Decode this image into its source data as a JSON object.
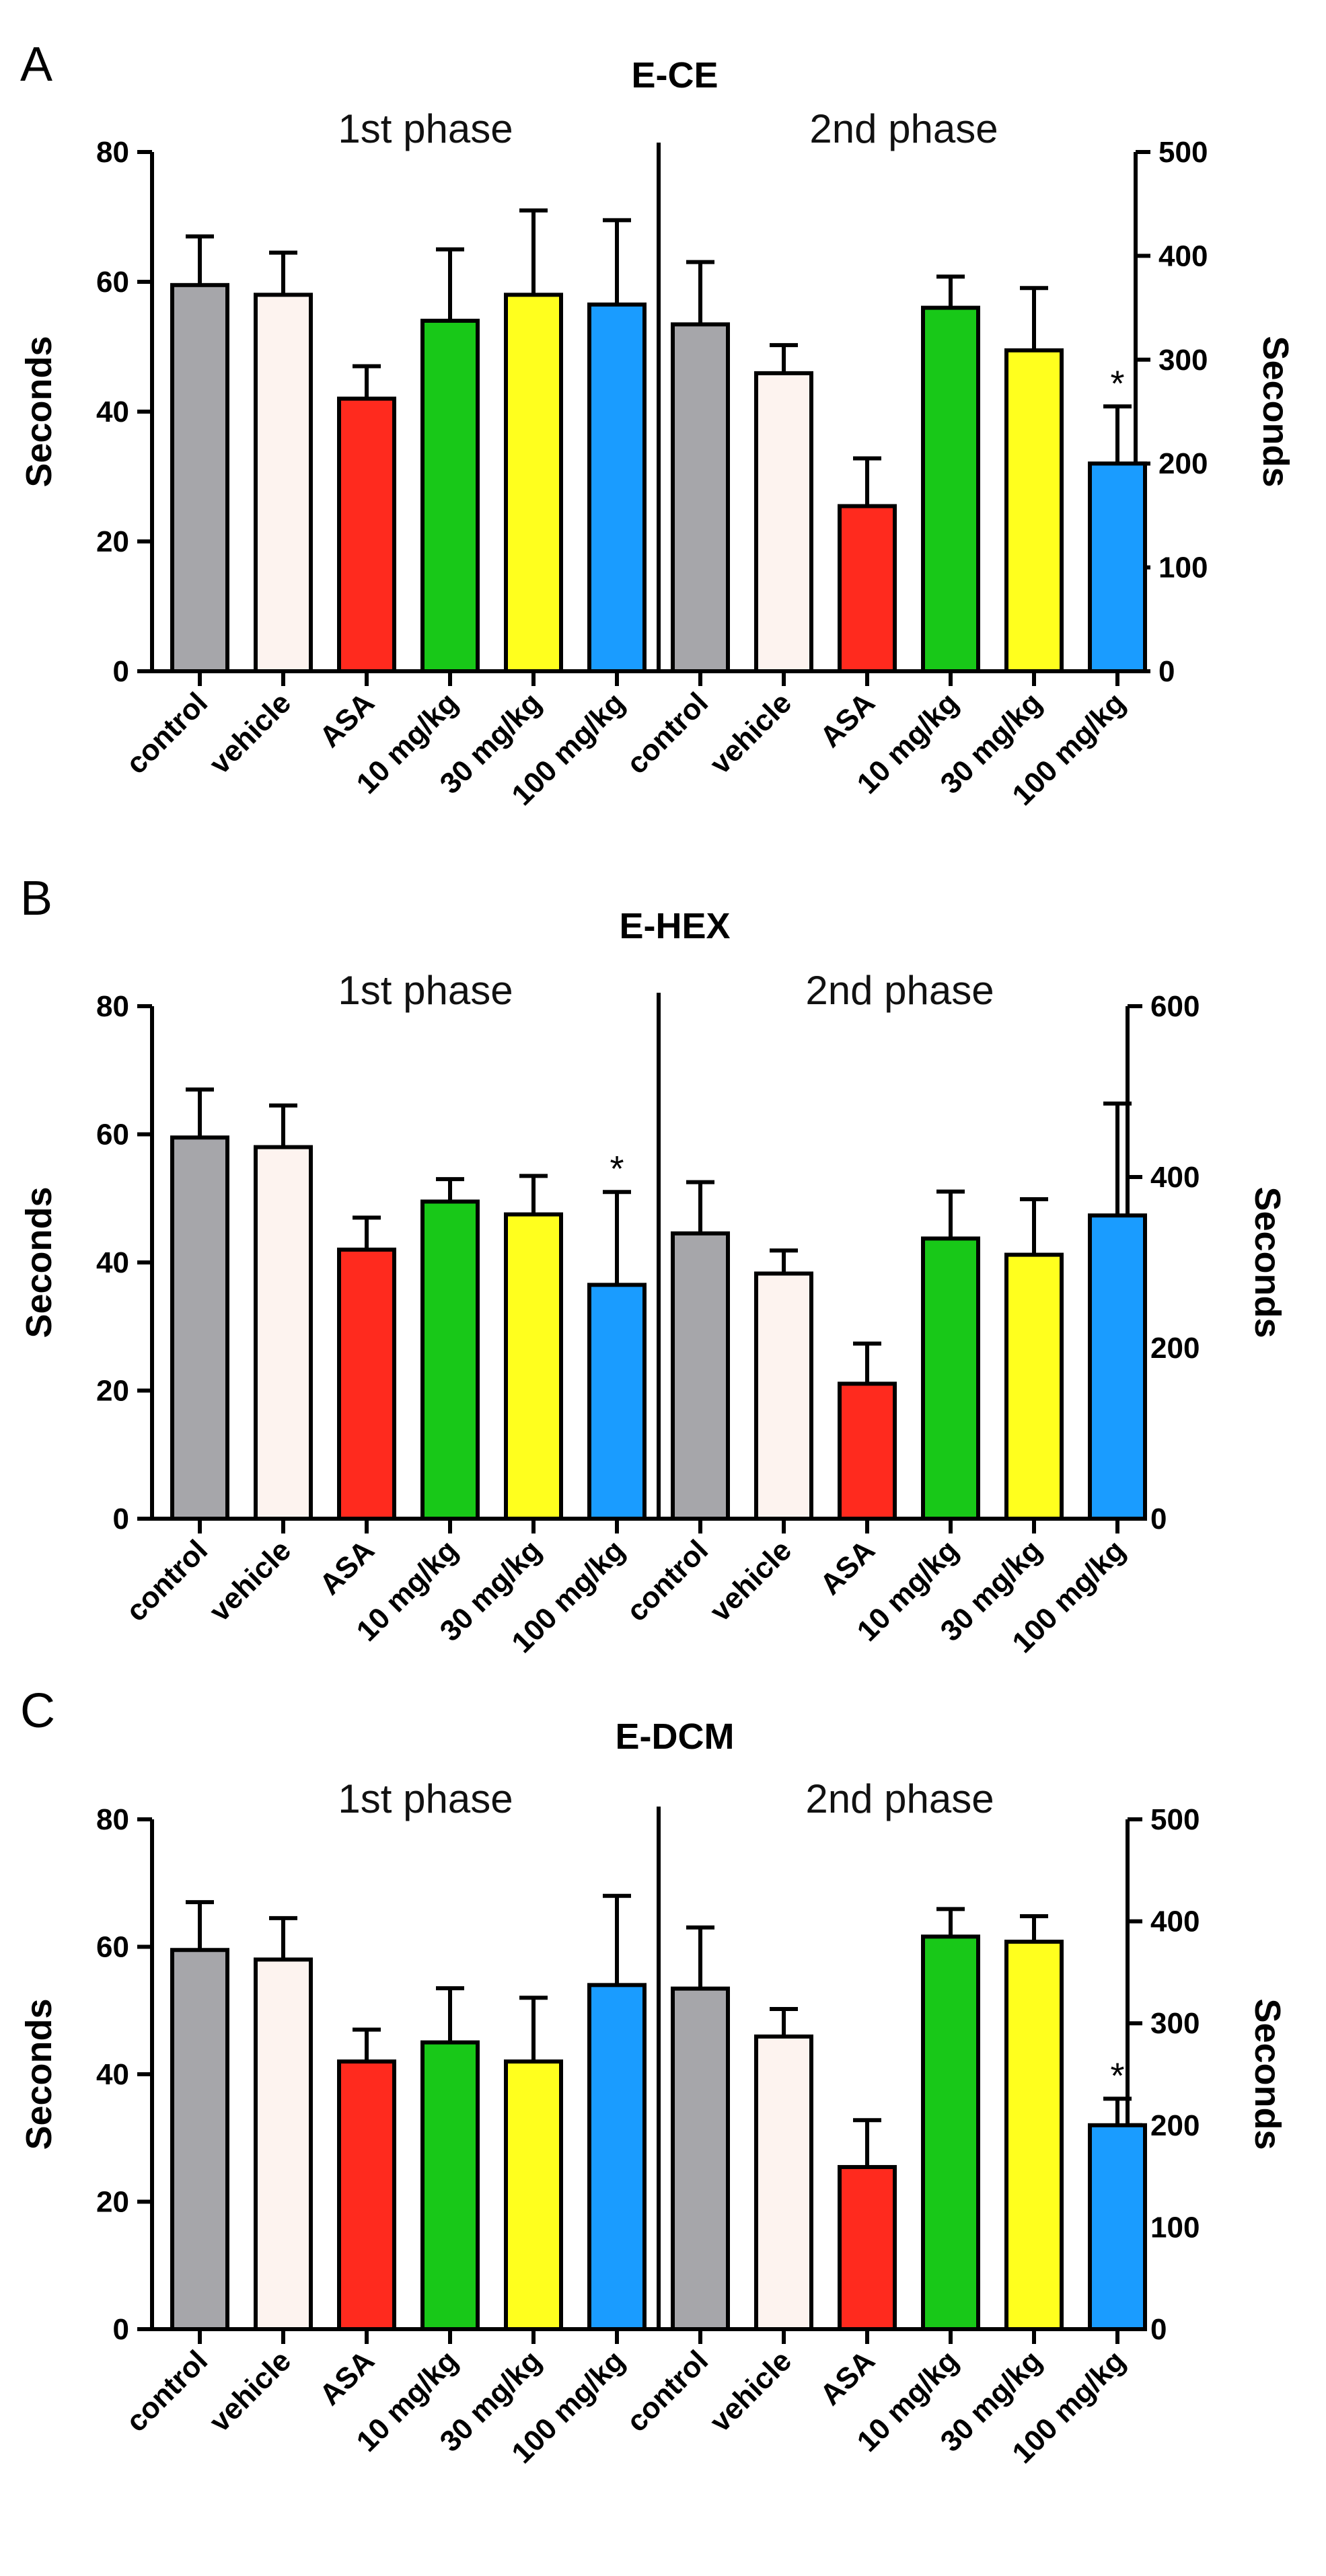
{
  "colors": {
    "control": "#a6a6aa",
    "vehicle": "#fdf3ef",
    "ASA": "#ff2a1e",
    "10 mg/kg": "#18c818",
    "30 mg/kg": "#ffff1e",
    "100 mg/kg": "#1a9cff"
  },
  "chart_data": [
    {
      "panel": "A",
      "type": "bar",
      "title": "E-CE",
      "phases": [
        {
          "name": "1st phase",
          "axis": "left",
          "ylabel": "Seconds",
          "ylim": [
            0,
            80
          ],
          "ticks": [
            "0",
            "20",
            "40",
            "60",
            "80"
          ],
          "categories": [
            "control",
            "vehicle",
            "ASA",
            "10 mg/kg",
            "30 mg/kg",
            "100 mg/kg"
          ],
          "values": [
            59.5,
            58,
            42,
            54,
            58,
            56.5
          ],
          "errors": [
            7.5,
            6.5,
            5,
            11,
            13,
            13
          ],
          "significant": [
            false,
            false,
            false,
            false,
            false,
            false
          ]
        },
        {
          "name": "2nd phase",
          "axis": "right",
          "ylabel": "Seconds",
          "ylim": [
            0,
            500
          ],
          "ticks": [
            "0",
            "100",
            "200",
            "300",
            "400",
            "500"
          ],
          "categories": [
            "control",
            "vehicle",
            "ASA",
            "10 mg/kg",
            "30 mg/kg",
            "100 mg/kg"
          ],
          "values": [
            334,
            287,
            159,
            350,
            309,
            200
          ],
          "errors": [
            60,
            27,
            46,
            30,
            60,
            55
          ],
          "significant": [
            false,
            false,
            false,
            false,
            false,
            true
          ]
        }
      ]
    },
    {
      "panel": "B",
      "type": "bar",
      "title": "E-HEX",
      "phases": [
        {
          "name": "1st phase",
          "axis": "left",
          "ylabel": "Seconds",
          "ylim": [
            0,
            80
          ],
          "ticks": [
            "0",
            "20",
            "40",
            "60",
            "80"
          ],
          "categories": [
            "control",
            "vehicle",
            "ASA",
            "10 mg/kg",
            "30 mg/kg",
            "100 mg/kg"
          ],
          "values": [
            59.5,
            58,
            42,
            49.5,
            47.5,
            36.5
          ],
          "errors": [
            7.5,
            6.5,
            5,
            3.5,
            6,
            14.5
          ],
          "significant": [
            false,
            false,
            false,
            false,
            false,
            true
          ]
        },
        {
          "name": "2nd phase",
          "axis": "right",
          "ylabel": "Seconds",
          "ylim": [
            0,
            600
          ],
          "ticks": [
            "0",
            "200",
            "400",
            "600"
          ],
          "categories": [
            "control",
            "vehicle",
            "ASA",
            "10 mg/kg",
            "30 mg/kg",
            "100 mg/kg"
          ],
          "values": [
            334,
            287,
            158,
            328,
            309,
            355
          ],
          "errors": [
            60,
            27,
            47,
            55,
            65,
            131
          ],
          "significant": [
            false,
            false,
            false,
            false,
            false,
            false
          ]
        }
      ]
    },
    {
      "panel": "C",
      "type": "bar",
      "title": "E-DCM",
      "phases": [
        {
          "name": "1st phase",
          "axis": "left",
          "ylabel": "Seconds",
          "ylim": [
            0,
            80
          ],
          "ticks": [
            "0",
            "20",
            "40",
            "60",
            "80"
          ],
          "categories": [
            "control",
            "vehicle",
            "ASA",
            "10 mg/kg",
            "30 mg/kg",
            "100 mg/kg"
          ],
          "values": [
            59.5,
            58,
            42,
            45,
            42,
            54
          ],
          "errors": [
            7.5,
            6.5,
            5,
            8.5,
            10,
            14
          ],
          "significant": [
            false,
            false,
            false,
            false,
            false,
            false
          ]
        },
        {
          "name": "2nd phase",
          "axis": "right",
          "ylabel": "Seconds",
          "ylim": [
            0,
            500
          ],
          "ticks": [
            "0",
            "100",
            "200",
            "300",
            "400",
            "500"
          ],
          "categories": [
            "control",
            "vehicle",
            "ASA",
            "10 mg/kg",
            "30 mg/kg",
            "100 mg/kg"
          ],
          "values": [
            334,
            287,
            159,
            385,
            380,
            200
          ],
          "errors": [
            60,
            27,
            46,
            27,
            25,
            26
          ],
          "significant": [
            false,
            false,
            false,
            false,
            false,
            true
          ]
        }
      ]
    }
  ]
}
